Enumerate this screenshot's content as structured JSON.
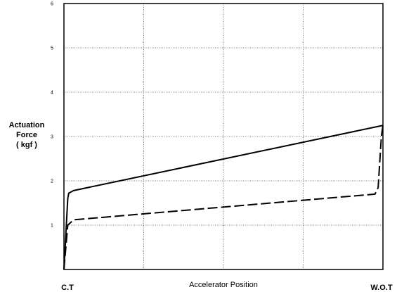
{
  "chart_data": {
    "type": "line",
    "ylabel_lines": [
      "Actuation",
      "Force",
      "( kgf )"
    ],
    "xlabel": "Accelerator Position",
    "x_start_label": "C.T",
    "x_end_label": "W.O.T",
    "xlim": [
      0,
      1
    ],
    "ylim": [
      0,
      6
    ],
    "y_ticks": [
      1,
      2,
      3,
      4,
      5,
      6
    ],
    "x_gridlines": [
      0.25,
      0.5,
      0.75
    ],
    "grid": true,
    "legend": "none",
    "series": [
      {
        "style": "solid",
        "color": "#000000",
        "x": [
          0,
          0.012,
          0.015,
          0.03,
          1.0
        ],
        "y": [
          0,
          1.6,
          1.72,
          1.78,
          3.25
        ]
      },
      {
        "style": "dashed",
        "color": "#000000",
        "x": [
          0,
          0.012,
          0.03,
          0.975,
          0.985,
          0.995,
          1.0
        ],
        "y": [
          0,
          1.0,
          1.12,
          1.7,
          1.85,
          3.0,
          3.25
        ]
      }
    ]
  }
}
